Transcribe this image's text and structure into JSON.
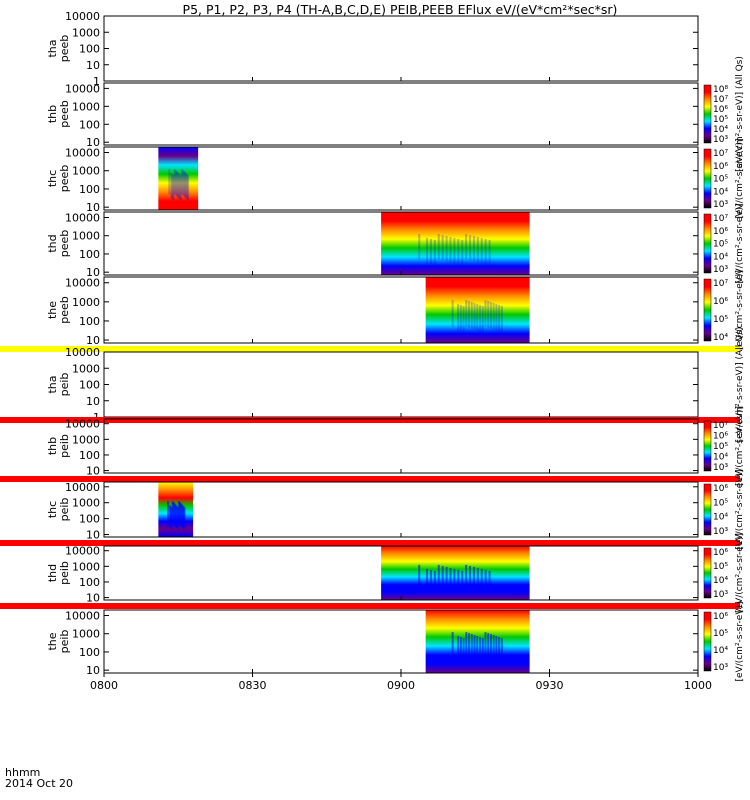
{
  "chart_data": {
    "type": "heatmap",
    "title": "P5, P1, P2, P3, P4 (TH-A,B,C,D,E) PEIB,PEEB EFlux eV/(eV*cm²*sec*sr)",
    "x_axis": {
      "ticks": [
        "0800",
        "0830",
        "0900",
        "0930",
        "1000"
      ],
      "tick_hours": [
        8.0,
        8.5,
        9.0,
        9.5,
        10.0
      ],
      "range_hours": [
        8.0,
        10.0
      ],
      "label_line1": "hhmm",
      "label_line2": "2014 Oct 20"
    },
    "colors": {
      "red": "#ff0000",
      "orange": "#ff8c00",
      "yellow": "#ffff00",
      "green": "#00c800",
      "cyan": "#00e6ff",
      "blue": "#0000ff",
      "purple": "#6a0088",
      "black": "#000000"
    },
    "panels": [
      {
        "name": "tha-peeb",
        "label_line1": "tha",
        "label_line2": "peeb",
        "yticks": [
          "10000",
          "1000",
          "100",
          "10",
          "1"
        ],
        "ylog_range": [
          1,
          10000
        ],
        "data_blocks": [],
        "colorbar": null,
        "side_label": "",
        "band_below": null
      },
      {
        "name": "thb-peeb",
        "label_line1": "thb",
        "label_line2": "peeb",
        "yticks": [
          "10000",
          "1000",
          "100",
          "10"
        ],
        "ylog_range": [
          7,
          20000
        ],
        "data_blocks": [],
        "colorbar": {
          "ticks": [
            "10⁸",
            "10⁷",
            "10⁶",
            "10⁵",
            "10⁴",
            "10³"
          ]
        },
        "side_label": "[eV/(cm²-s-sr-eV)] (All Qs)",
        "band_below": null
      },
      {
        "name": "thc-peeb",
        "label_line1": "thc",
        "label_line2": "peeb",
        "yticks": [
          "10000",
          "1000",
          "100",
          "10"
        ],
        "ylog_range": [
          7,
          20000
        ],
        "data_blocks": [
          {
            "start_hour": 8.183,
            "end_hour": 8.317,
            "style": "peeb-low"
          }
        ],
        "colorbar": {
          "ticks": [
            "10⁷",
            "10⁶",
            "10⁵",
            "10⁴",
            "10³"
          ]
        },
        "side_label": "[eV/(cm²-s-sr-eV)]",
        "band_below": null
      },
      {
        "name": "thd-peeb",
        "label_line1": "thd",
        "label_line2": "peeb",
        "yticks": [
          "10000",
          "1000",
          "100",
          "10"
        ],
        "ylog_range": [
          7,
          20000
        ],
        "data_blocks": [
          {
            "start_hour": 8.933,
            "end_hour": 9.433,
            "style": "peeb-high"
          }
        ],
        "colorbar": {
          "ticks": [
            "10⁷",
            "10⁶",
            "10⁵",
            "10⁴",
            "10³"
          ]
        },
        "side_label": "[eV/(cm²-s-sr-eV)]",
        "band_below": null
      },
      {
        "name": "the-peeb",
        "label_line1": "the",
        "label_line2": "peeb",
        "yticks": [
          "10000",
          "1000",
          "100",
          "10"
        ],
        "ylog_range": [
          7,
          20000
        ],
        "data_blocks": [
          {
            "start_hour": 9.083,
            "end_hour": 9.433,
            "style": "peeb-high"
          }
        ],
        "colorbar": {
          "ticks": [
            "10⁷",
            "10⁶",
            "10⁵",
            "10⁴"
          ]
        },
        "side_label": "[eV/(cm²-s-sr-eV)]",
        "band_below": "yellow"
      },
      {
        "name": "tha-peib",
        "label_line1": "tha",
        "label_line2": "peib",
        "yticks": [
          "10000",
          "1000",
          "100",
          "10",
          "1"
        ],
        "ylog_range": [
          1,
          10000
        ],
        "data_blocks": [],
        "colorbar": null,
        "side_label": "[eV/(cm²-s-sr-eV)] (All Qs)",
        "band_below": "red"
      },
      {
        "name": "thb-peib",
        "label_line1": "thb",
        "label_line2": "peib",
        "yticks": [
          "10000",
          "1000",
          "100",
          "10"
        ],
        "ylog_range": [
          7,
          20000
        ],
        "data_blocks": [],
        "colorbar": {
          "ticks": [
            "10⁷",
            "10⁶",
            "10⁵",
            "10⁴",
            "10³"
          ]
        },
        "side_label": "[eV/(cm²-s-sr-eV)]",
        "band_below": "red"
      },
      {
        "name": "thc-peib",
        "label_line1": "thc",
        "label_line2": "peib",
        "yticks": [
          "10000",
          "1000",
          "100",
          "10"
        ],
        "ylog_range": [
          7,
          20000
        ],
        "data_blocks": [
          {
            "start_hour": 8.183,
            "end_hour": 8.3,
            "style": "peib-low"
          }
        ],
        "colorbar": {
          "ticks": [
            "10⁶",
            "10⁵",
            "10⁴",
            "10³"
          ]
        },
        "side_label": "[eV/(cm²-s-sr-eV)]",
        "band_below": "red"
      },
      {
        "name": "thd-peib",
        "label_line1": "thd",
        "label_line2": "peib",
        "yticks": [
          "10000",
          "1000",
          "100",
          "10"
        ],
        "ylog_range": [
          7,
          20000
        ],
        "data_blocks": [
          {
            "start_hour": 8.933,
            "end_hour": 9.433,
            "style": "peib-high"
          }
        ],
        "colorbar": {
          "ticks": [
            "10⁶",
            "10⁵",
            "10⁴",
            "10³"
          ]
        },
        "side_label": "[eV/(cm²-s-sr-eV)]",
        "band_below": "red"
      },
      {
        "name": "the-peib",
        "label_line1": "the",
        "label_line2": "peib",
        "yticks": [
          "10000",
          "1000",
          "100",
          "10"
        ],
        "ylog_range": [
          7,
          20000
        ],
        "data_blocks": [
          {
            "start_hour": 9.083,
            "end_hour": 9.433,
            "style": "peib-high"
          }
        ],
        "colorbar": {
          "ticks": [
            "10⁶",
            "10⁵",
            "10⁴",
            "10³"
          ]
        },
        "side_label": "[eV/(cm²-s-sr-eV)]",
        "band_below": null
      }
    ]
  }
}
